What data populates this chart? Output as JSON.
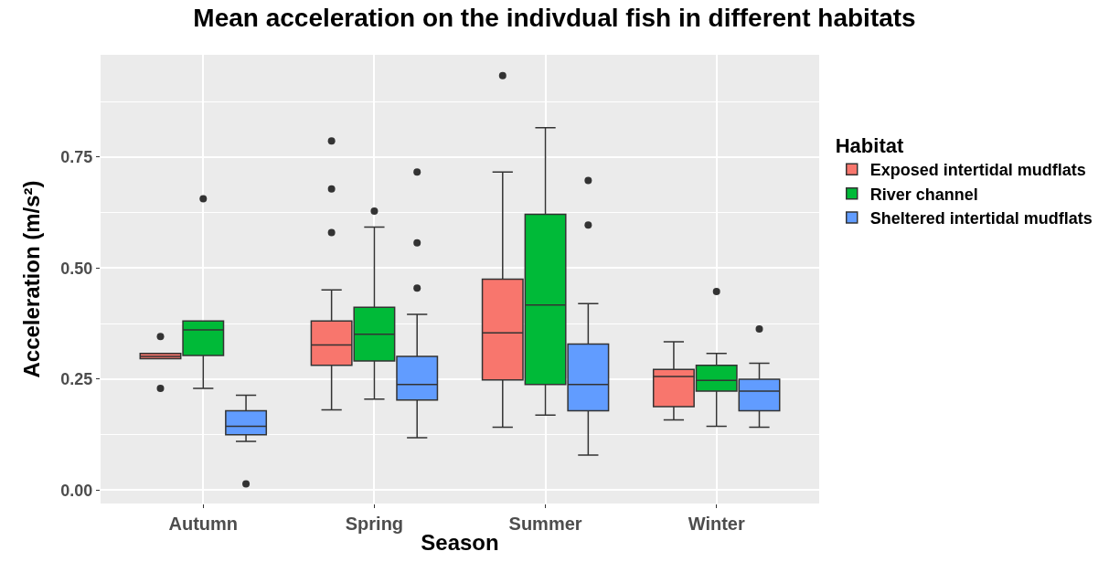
{
  "chart_data": {
    "type": "box",
    "title": "Mean acceleration on the indivdual fish in different habitats",
    "xlabel": "Season",
    "ylabel": "Acceleration (m/s²)",
    "legend_title": "Habitat",
    "categories": [
      "Autumn",
      "Spring",
      "Summer",
      "Winter"
    ],
    "ylim": [
      -0.03,
      0.98
    ],
    "yticks": [
      {
        "value": 0,
        "label": "0.00"
      },
      {
        "value": 0.25,
        "label": "0.25"
      },
      {
        "value": 0.5,
        "label": "0.50"
      },
      {
        "value": 0.75,
        "label": "0.75"
      }
    ],
    "grid": true,
    "legend": "right",
    "series": [
      {
        "name": "Exposed intertidal mudflats",
        "color": "#f8766d",
        "boxes": [
          {
            "low": 0.296,
            "q1": 0.296,
            "median": 0.301,
            "q3": 0.308,
            "high": 0.308,
            "outliers": [
              0.346,
              0.229
            ]
          },
          {
            "low": 0.181,
            "q1": 0.281,
            "median": 0.327,
            "q3": 0.381,
            "high": 0.451,
            "outliers": [
              0.786,
              0.678,
              0.58
            ]
          },
          {
            "low": 0.142,
            "q1": 0.248,
            "median": 0.354,
            "q3": 0.475,
            "high": 0.716,
            "outliers": [
              0.933
            ]
          },
          {
            "low": 0.158,
            "q1": 0.188,
            "median": 0.256,
            "q3": 0.272,
            "high": 0.334
          }
        ]
      },
      {
        "name": "River channel",
        "color": "#00ba38",
        "boxes": [
          {
            "low": 0.229,
            "q1": 0.303,
            "median": 0.361,
            "q3": 0.381,
            "high": 0.381,
            "outliers": [
              0.656
            ]
          },
          {
            "low": 0.205,
            "q1": 0.291,
            "median": 0.351,
            "q3": 0.412,
            "high": 0.592,
            "outliers": [
              0.628
            ]
          },
          {
            "low": 0.169,
            "q1": 0.238,
            "median": 0.417,
            "q3": 0.621,
            "high": 0.816
          },
          {
            "low": 0.144,
            "q1": 0.223,
            "median": 0.247,
            "q3": 0.281,
            "high": 0.308,
            "outliers": [
              0.447
            ]
          }
        ]
      },
      {
        "name": "Sheltered intertidal mudflats",
        "color": "#619cff",
        "boxes": [
          {
            "low": 0.11,
            "q1": 0.125,
            "median": 0.144,
            "q3": 0.179,
            "high": 0.214,
            "outliers": [
              0.014
            ]
          },
          {
            "low": 0.118,
            "q1": 0.203,
            "median": 0.238,
            "q3": 0.301,
            "high": 0.396,
            "outliers": [
              0.716,
              0.557,
              0.455
            ]
          },
          {
            "low": 0.079,
            "q1": 0.179,
            "median": 0.238,
            "q3": 0.329,
            "high": 0.42,
            "outliers": [
              0.697,
              0.597
            ]
          },
          {
            "low": 0.142,
            "q1": 0.179,
            "median": 0.223,
            "q3": 0.25,
            "high": 0.286,
            "outliers": [
              0.363
            ]
          }
        ]
      }
    ]
  }
}
